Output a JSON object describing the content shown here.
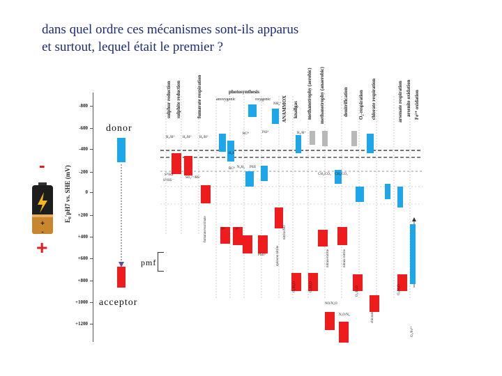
{
  "question": "dans quel ordre ces mécanismes sont-ils apparus\net surtout, lequel était le premier ?",
  "labels": {
    "donor": "donor",
    "acceptor": "acceptor",
    "pmf": "pmf",
    "minus": "-",
    "plus": "+"
  },
  "scale": {
    "axis_title": "E₀′pH7 vs. SHE (mV)",
    "ticks": [
      "-800",
      "-600",
      "-400",
      "-200",
      "0",
      "+200",
      "+400",
      "+600",
      "+800",
      "+1000",
      "+1200"
    ]
  },
  "columns": {
    "photosynthesis": "photosynthesis",
    "anoxygenic": "anoxygenic",
    "oxygenic": "oxygenic",
    "anammox": "ANAMMOX",
    "titles": [
      "sulphur reduction",
      "sulphite reduction",
      "fumarate respiration",
      "knallgas",
      "methanotrophy (aerobic)",
      "methanotrophy (anaerobic)",
      "denitrification",
      "O₂-respiration",
      "chlorate respiration",
      "arsenate respiration",
      "arsenite oxidation",
      "Fe²⁺ oxidation"
    ]
  },
  "species": {
    "top": [
      "H₂/H⁺",
      "H₂/H⁺",
      "H₂/H⁺",
      "H₂/H⁺",
      "RCᴮ",
      "PSIᴬ",
      "NH₄⁺",
      "H₂S",
      "N₂H₄"
    ],
    "mid": [
      "S⁰/HS⁻",
      "SO₃²⁻/HS⁻",
      "S⁰/HS⁻",
      "RCᴮ",
      "PSII",
      "CH₄/CO₂",
      "CH₄/CO₂"
    ],
    "low": [
      "fumarate/succinate",
      "P⁺",
      "P⁺",
      "PSIIᴬ",
      "quinone nitrite",
      "nitrate/nitrite",
      "nitrite/NO",
      "nitrate nitrite"
    ],
    "bottom": [
      "O₂/H₂O",
      "O₂/H₂O",
      "O₂/H₂O",
      "NO/N₂O",
      "N₂O/N₂",
      "chlorate",
      "O₂/H₂O",
      "O₂/Fe³⁺"
    ]
  },
  "colors": {
    "red": "#ee1c1c",
    "blue": "#1ea7e8",
    "gray": "#b8b8b8",
    "title": "#1d2a78",
    "arrow": "#6a4a9a"
  }
}
